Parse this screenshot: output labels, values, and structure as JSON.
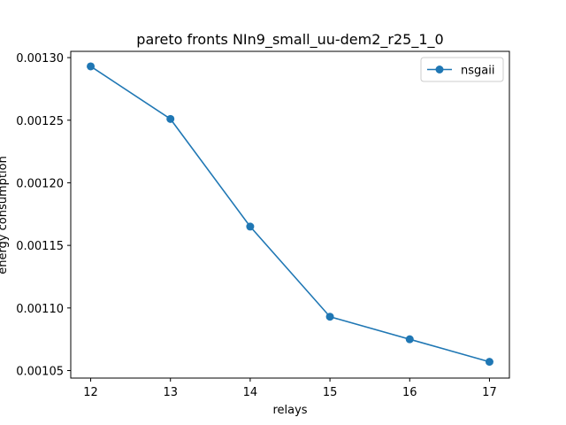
{
  "chart_data": {
    "type": "line",
    "title": "pareto fronts NIn9_small_uu-dem2_r25_1_0",
    "xlabel": "relays",
    "ylabel": "energy consumption",
    "x": [
      12,
      13,
      14,
      15,
      16,
      17
    ],
    "xlim": [
      11.75,
      17.25
    ],
    "ylim": [
      0.001044,
      0.001305
    ],
    "xticks": [
      12,
      13,
      14,
      15,
      16,
      17
    ],
    "yticks": [
      0.00105,
      0.0011,
      0.00115,
      0.0012,
      0.00125,
      0.0013
    ],
    "ytick_labels": [
      "0.00105",
      "0.00110",
      "0.00115",
      "0.00120",
      "0.00125",
      "0.00130"
    ],
    "series": [
      {
        "name": "nsgaii",
        "color": "#1f77b4",
        "marker": "circle",
        "values": [
          0.001293,
          0.001251,
          0.001165,
          0.001093,
          0.001075,
          0.001057
        ]
      }
    ],
    "legend_position": "top-right",
    "grid": false
  }
}
